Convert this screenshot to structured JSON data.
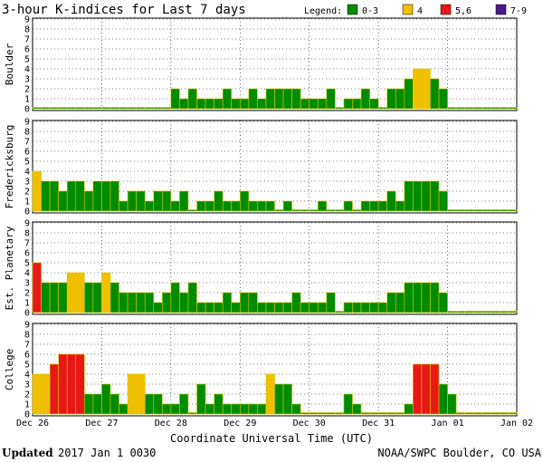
{
  "header": {
    "title": "3-hour K-indices for Last 7 days",
    "legend_label": "Legend:",
    "legend": [
      {
        "label": "0-3",
        "color": "#008c00"
      },
      {
        "label": "4",
        "color": "#f0c000"
      },
      {
        "label": "5,6",
        "color": "#e81818"
      },
      {
        "label": "7-9",
        "color": "#4a1a8c"
      }
    ]
  },
  "footer": {
    "updated_bold": "Updated",
    "updated_rest": "2017 Jan  1 0030",
    "credit": "NOAA/SWPC Boulder, CO USA"
  },
  "chart_data": {
    "type": "bar",
    "xlabel": "Coordinate Universal Time (UTC)",
    "x_ticks": [
      "Dec 26",
      "Dec 27",
      "Dec 28",
      "Dec 29",
      "Dec 30",
      "Dec 31",
      "Jan 01",
      "Jan 02"
    ],
    "ylim": [
      0,
      9
    ],
    "y_ticks": [
      "0",
      "1",
      "2",
      "3",
      "4",
      "5",
      "6",
      "7",
      "8",
      "9"
    ],
    "interval_hours": 3,
    "panels": [
      {
        "name": "Boulder",
        "values": [
          0,
          0,
          0,
          0,
          0,
          0,
          0,
          0,
          0,
          0,
          0,
          0,
          0,
          0,
          0,
          0,
          2,
          1,
          2,
          1,
          1,
          1,
          2,
          1,
          1,
          2,
          1,
          2,
          2,
          2,
          2,
          1,
          1,
          1,
          2,
          0,
          1,
          1,
          2,
          1,
          0,
          2,
          2,
          3,
          4,
          4,
          3,
          2,
          0,
          0,
          0,
          0,
          0,
          0,
          0,
          0
        ]
      },
      {
        "name": "Fredericksburg",
        "values": [
          4,
          3,
          3,
          2,
          3,
          3,
          2,
          3,
          3,
          3,
          1,
          2,
          2,
          1,
          2,
          2,
          1,
          2,
          0,
          1,
          1,
          2,
          1,
          1,
          2,
          1,
          1,
          1,
          0,
          1,
          0,
          0,
          0,
          1,
          0,
          0,
          1,
          0,
          1,
          1,
          1,
          2,
          1,
          3,
          3,
          3,
          3,
          2,
          0,
          0,
          0,
          0,
          0,
          0,
          0,
          0
        ]
      },
      {
        "name": "Est. Planetary",
        "values": [
          5,
          3,
          3,
          3,
          4,
          4,
          3,
          3,
          4,
          3,
          2,
          2,
          2,
          2,
          1,
          2,
          3,
          2,
          3,
          1,
          1,
          1,
          2,
          1,
          2,
          2,
          1,
          1,
          1,
          1,
          2,
          1,
          1,
          1,
          2,
          0,
          1,
          1,
          1,
          1,
          1,
          2,
          2,
          3,
          3,
          3,
          3,
          2,
          0,
          0,
          0,
          0,
          0,
          0,
          0,
          0
        ]
      },
      {
        "name": "College",
        "values": [
          4,
          4,
          5,
          6,
          6,
          6,
          2,
          2,
          3,
          2,
          1,
          4,
          4,
          2,
          2,
          1,
          1,
          2,
          0,
          3,
          1,
          2,
          1,
          1,
          1,
          1,
          1,
          4,
          3,
          3,
          1,
          0,
          0,
          0,
          0,
          0,
          2,
          1,
          0,
          0,
          0,
          0,
          0,
          1,
          5,
          5,
          5,
          3,
          2,
          0,
          0,
          0,
          0,
          0,
          0,
          0
        ]
      }
    ]
  }
}
